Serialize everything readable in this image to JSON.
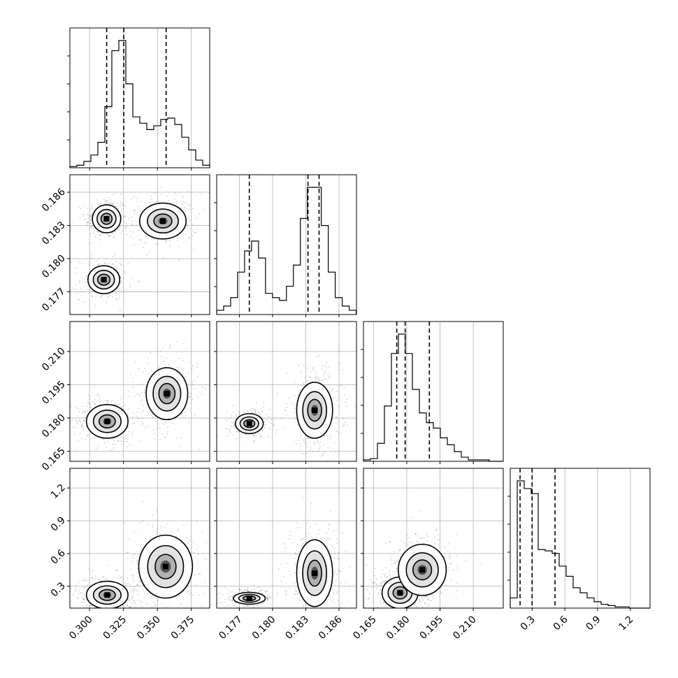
{
  "chart_data": {
    "type": "corner",
    "grid": true,
    "parameters": [
      {
        "range": [
          0.2855,
          0.3885
        ],
        "ticks": [
          0.3,
          0.325,
          0.35,
          0.375
        ],
        "tick_labels": [
          "0.300",
          "0.325",
          "0.350",
          "0.375"
        ]
      },
      {
        "range": [
          0.17495,
          0.18758
        ],
        "ticks": [
          0.177,
          0.18,
          0.183,
          0.186
        ],
        "tick_labels": [
          "0.177",
          "0.180",
          "0.183",
          "0.186"
        ]
      },
      {
        "range": [
          0.1605,
          0.2235
        ],
        "ticks": [
          0.165,
          0.18,
          0.195,
          0.21
        ],
        "tick_labels": [
          "0.165",
          "0.180",
          "0.195",
          "0.210"
        ]
      },
      {
        "range": [
          0.1,
          1.38
        ],
        "ticks": [
          0.3,
          0.6,
          0.9,
          1.2
        ],
        "tick_labels": [
          "0.3",
          "0.6",
          "0.9",
          "1.2"
        ]
      }
    ],
    "histograms": [
      {
        "edges_start": 0.2855,
        "bin_width": 0.00515,
        "counts": [
          1,
          2,
          5,
          10,
          20,
          48,
          92,
          100,
          66,
          40,
          35,
          30,
          33,
          38,
          39,
          34,
          24,
          14,
          6,
          2
        ],
        "quantiles": [
          0.3126,
          0.3252,
          0.3564
        ]
      },
      {
        "edges_start": 0.17495,
        "bin_width": 0.00063,
        "counts": [
          3,
          6,
          12,
          30,
          45,
          52,
          40,
          15,
          12,
          10,
          20,
          35,
          68,
          90,
          90,
          63,
          30,
          12,
          6,
          3
        ],
        "quantiles": [
          0.1779,
          0.1832,
          0.1842
        ]
      },
      {
        "edges_start": 0.1605,
        "bin_width": 0.00315,
        "counts": [
          1,
          2,
          13,
          40,
          78,
          92,
          78,
          52,
          35,
          28,
          24,
          17,
          12,
          7,
          3,
          1,
          1,
          1,
          0,
          0
        ],
        "quantiles": [
          0.1755,
          0.1793,
          0.1902
        ]
      },
      {
        "edges_start": 0.1,
        "bin_width": 0.064,
        "counts": [
          8,
          100,
          94,
          90,
          46,
          45,
          43,
          33,
          25,
          16,
          12,
          8,
          5,
          3,
          2,
          1,
          1,
          0,
          0,
          0
        ],
        "quantiles": [
          0.19,
          0.3,
          0.51
        ]
      }
    ],
    "joint_2d": [
      {
        "x": 0,
        "y": 1,
        "clusters": [
          {
            "cx": 0.3125,
            "cy": 0.1836,
            "sx": 0.0058,
            "sy": 0.0007,
            "n": 330
          },
          {
            "cx": 0.354,
            "cy": 0.1834,
            "sx": 0.0095,
            "sy": 0.0009,
            "n": 230
          },
          {
            "cx": 0.3105,
            "cy": 0.1781,
            "sx": 0.0065,
            "sy": 0.0007,
            "n": 230
          }
        ]
      },
      {
        "x": 0,
        "y": 2,
        "clusters": [
          {
            "cx": 0.313,
            "cy": 0.1785,
            "sx": 0.0085,
            "sy": 0.0042,
            "n": 420
          },
          {
            "cx": 0.357,
            "cy": 0.191,
            "sx": 0.0085,
            "sy": 0.0065,
            "n": 300
          }
        ]
      },
      {
        "x": 0,
        "y": 3,
        "clusters": [
          {
            "cx": 0.313,
            "cy": 0.22,
            "sx": 0.0085,
            "sy": 0.07,
            "n": 380
          },
          {
            "cx": 0.356,
            "cy": 0.48,
            "sx": 0.011,
            "sy": 0.16,
            "n": 320
          }
        ]
      },
      {
        "x": 1,
        "y": 2,
        "clusters": [
          {
            "cx": 0.1779,
            "cy": 0.1775,
            "sx": 0.0007,
            "sy": 0.0025,
            "n": 260
          },
          {
            "cx": 0.1838,
            "cy": 0.1835,
            "sx": 0.0009,
            "sy": 0.007,
            "n": 400
          }
        ]
      },
      {
        "x": 1,
        "y": 3,
        "clusters": [
          {
            "cx": 0.1779,
            "cy": 0.19,
            "sx": 0.0008,
            "sy": 0.03,
            "n": 280
          },
          {
            "cx": 0.1838,
            "cy": 0.42,
            "sx": 0.0009,
            "sy": 0.17,
            "n": 400
          }
        ]
      },
      {
        "x": 2,
        "y": 3,
        "clusters": [
          {
            "cx": 0.177,
            "cy": 0.24,
            "sx": 0.0045,
            "sy": 0.08,
            "n": 380
          },
          {
            "cx": 0.187,
            "cy": 0.45,
            "sx": 0.006,
            "sy": 0.13,
            "n": 320
          }
        ]
      }
    ]
  }
}
